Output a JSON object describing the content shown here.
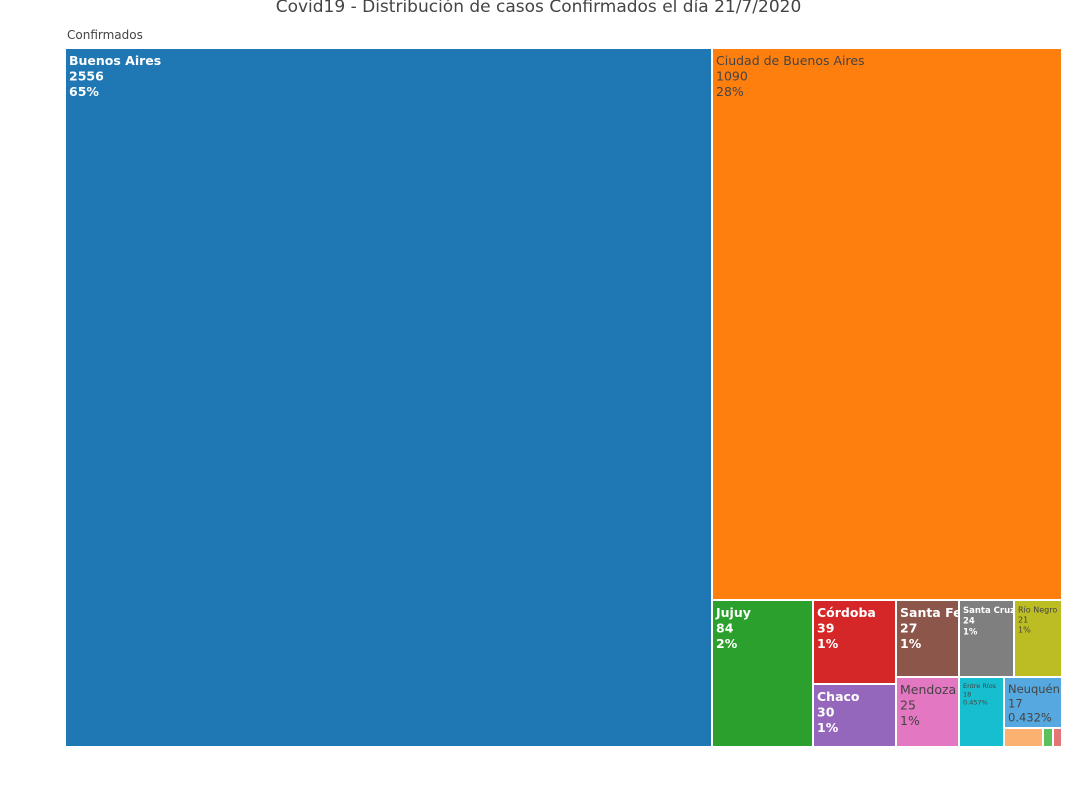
{
  "chart_data": {
    "type": "treemap",
    "title": "Covid19 - Distribución de casos Confirmados el día 21/7/2020",
    "root": "Confirmados",
    "nodes": [
      {
        "name": "Buenos Aires",
        "value": 2556,
        "percent": "65%",
        "color": "#1f77b4",
        "text_color": "#ffffff",
        "bold": true
      },
      {
        "name": "Ciudad de Buenos Aires",
        "value": 1090,
        "percent": "28%",
        "color": "#ff7f0e",
        "text_color": "#444444",
        "bold": false
      },
      {
        "name": "Jujuy",
        "value": 84,
        "percent": "2%",
        "color": "#2ca02c",
        "text_color": "#ffffff",
        "bold": true
      },
      {
        "name": "Córdoba",
        "value": 39,
        "percent": "1%",
        "color": "#d62728",
        "text_color": "#ffffff",
        "bold": true
      },
      {
        "name": "Chaco",
        "value": 30,
        "percent": "1%",
        "color": "#9467bd",
        "text_color": "#ffffff",
        "bold": true
      },
      {
        "name": "Santa Fe",
        "value": 27,
        "percent": "1%",
        "color": "#8c564b",
        "text_color": "#ffffff",
        "bold": true
      },
      {
        "name": "Mendoza",
        "value": 25,
        "percent": "1%",
        "color": "#e377c2",
        "text_color": "#444444",
        "bold": false
      },
      {
        "name": "Santa Cruz",
        "value": 24,
        "percent": "1%",
        "color": "#7f7f7f",
        "text_color": "#ffffff",
        "bold": true
      },
      {
        "name": "Río Negro",
        "value": 21,
        "percent": "1%",
        "color": "#bcbd22",
        "text_color": "#444444",
        "bold": false
      },
      {
        "name": "Entre Ríos",
        "value": 18,
        "percent": "0.457%",
        "color": "#17becf",
        "text_color": "#444444",
        "bold": false
      },
      {
        "name": "Neuquén",
        "value": 17,
        "percent": "0.432%",
        "color": "#56a9e0",
        "text_color": "#444444",
        "bold": false
      },
      {
        "name": "",
        "value": null,
        "percent": "",
        "color": "#fbb170",
        "text_color": "#444444",
        "bold": false
      },
      {
        "name": "",
        "value": null,
        "percent": "",
        "color": "#5bc25b",
        "text_color": "#444444",
        "bold": false
      },
      {
        "name": "",
        "value": null,
        "percent": "",
        "color": "#e27575",
        "text_color": "#444444",
        "bold": false
      }
    ]
  }
}
